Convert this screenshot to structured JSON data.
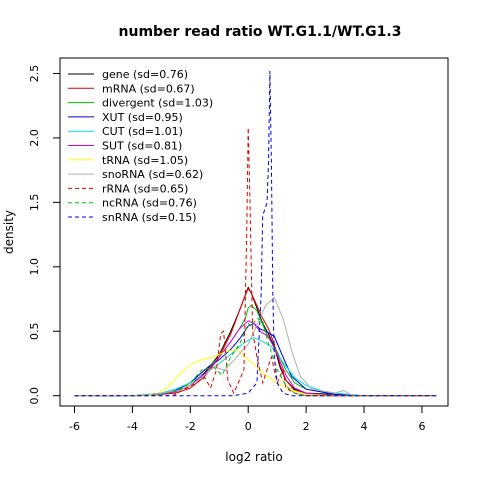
{
  "chart_data": {
    "type": "line",
    "title": "number read ratio WT.G1.1/WT.G1.3",
    "xlabel": "log2 ratio",
    "ylabel": "density",
    "xlim": [
      -6.5,
      6.9
    ],
    "ylim": [
      -0.08,
      2.62
    ],
    "x_ticks": [
      -6,
      -4,
      -2,
      0,
      2,
      4,
      6
    ],
    "y_ticks": [
      0.0,
      0.5,
      1.0,
      1.5,
      2.0,
      2.5
    ],
    "x_tick_labels": [
      "-6",
      "-4",
      "-2",
      "0",
      "2",
      "4",
      "6"
    ],
    "y_tick_labels": [
      "0.0",
      "0.5",
      "1.0",
      "1.5",
      "2.0",
      "2.5"
    ],
    "grid": false,
    "legend_position": "top-left",
    "series": [
      {
        "name": "gene (sd=0.76)",
        "color": "#000000",
        "dash": "solid",
        "points": [
          [
            -6,
            0
          ],
          [
            -4,
            0
          ],
          [
            -3,
            0.01
          ],
          [
            -2.5,
            0.03
          ],
          [
            -2,
            0.08
          ],
          [
            -1.5,
            0.18
          ],
          [
            -1,
            0.32
          ],
          [
            -0.6,
            0.5
          ],
          [
            -0.3,
            0.66
          ],
          [
            -0.1,
            0.78
          ],
          [
            0,
            0.84
          ],
          [
            0.1,
            0.8
          ],
          [
            0.3,
            0.68
          ],
          [
            0.5,
            0.56
          ],
          [
            0.7,
            0.48
          ],
          [
            0.9,
            0.38
          ],
          [
            1.1,
            0.22
          ],
          [
            1.3,
            0.12
          ],
          [
            1.6,
            0.05
          ],
          [
            2,
            0.02
          ],
          [
            3,
            0.01
          ],
          [
            4,
            0
          ],
          [
            6.5,
            0
          ]
        ]
      },
      {
        "name": "mRNA (sd=0.67)",
        "color": "#dd0000",
        "dash": "solid",
        "points": [
          [
            -6,
            0
          ],
          [
            -4,
            0
          ],
          [
            -3,
            0.01
          ],
          [
            -2.5,
            0.02
          ],
          [
            -2,
            0.06
          ],
          [
            -1.5,
            0.15
          ],
          [
            -1,
            0.3
          ],
          [
            -0.6,
            0.48
          ],
          [
            -0.3,
            0.66
          ],
          [
            -0.1,
            0.78
          ],
          [
            0,
            0.83
          ],
          [
            0.1,
            0.8
          ],
          [
            0.3,
            0.7
          ],
          [
            0.5,
            0.6
          ],
          [
            0.7,
            0.52
          ],
          [
            0.9,
            0.4
          ],
          [
            1.1,
            0.24
          ],
          [
            1.3,
            0.12
          ],
          [
            1.6,
            0.04
          ],
          [
            2,
            0.01
          ],
          [
            3,
            0
          ],
          [
            6.5,
            0
          ]
        ]
      },
      {
        "name": "divergent (sd=1.03)",
        "color": "#00bb00",
        "dash": "solid",
        "points": [
          [
            -6,
            0
          ],
          [
            -4,
            0
          ],
          [
            -3,
            0.02
          ],
          [
            -2.5,
            0.05
          ],
          [
            -2,
            0.1
          ],
          [
            -1.5,
            0.2
          ],
          [
            -1,
            0.3
          ],
          [
            -0.6,
            0.42
          ],
          [
            -0.3,
            0.52
          ],
          [
            -0.1,
            0.6
          ],
          [
            0,
            0.68
          ],
          [
            0.1,
            0.7
          ],
          [
            0.3,
            0.66
          ],
          [
            0.5,
            0.55
          ],
          [
            0.7,
            0.45
          ],
          [
            1,
            0.34
          ],
          [
            1.3,
            0.2
          ],
          [
            1.6,
            0.1
          ],
          [
            2,
            0.05
          ],
          [
            3,
            0.01
          ],
          [
            4,
            0
          ],
          [
            6.5,
            0
          ]
        ]
      },
      {
        "name": "XUT (sd=0.95)",
        "color": "#0000dd",
        "dash": "solid",
        "points": [
          [
            -6,
            0
          ],
          [
            -4,
            0
          ],
          [
            -3,
            0.01
          ],
          [
            -2.5,
            0.04
          ],
          [
            -2,
            0.1
          ],
          [
            -1.5,
            0.2
          ],
          [
            -1,
            0.28
          ],
          [
            -0.6,
            0.36
          ],
          [
            -0.3,
            0.44
          ],
          [
            0,
            0.54
          ],
          [
            0.2,
            0.56
          ],
          [
            0.4,
            0.52
          ],
          [
            0.6,
            0.5
          ],
          [
            0.9,
            0.46
          ],
          [
            1.2,
            0.3
          ],
          [
            1.5,
            0.15
          ],
          [
            2,
            0.05
          ],
          [
            3,
            0.01
          ],
          [
            4,
            0
          ],
          [
            6.5,
            0
          ]
        ]
      },
      {
        "name": "CUT (sd=1.01)",
        "color": "#00dddd",
        "dash": "solid",
        "points": [
          [
            -6,
            0
          ],
          [
            -4,
            0
          ],
          [
            -3,
            0.02
          ],
          [
            -2.5,
            0.05
          ],
          [
            -2,
            0.1
          ],
          [
            -1.5,
            0.17
          ],
          [
            -1,
            0.25
          ],
          [
            -0.5,
            0.34
          ],
          [
            -0.2,
            0.4
          ],
          [
            0,
            0.43
          ],
          [
            0.2,
            0.45
          ],
          [
            0.5,
            0.42
          ],
          [
            0.8,
            0.38
          ],
          [
            1.2,
            0.26
          ],
          [
            1.6,
            0.14
          ],
          [
            2,
            0.08
          ],
          [
            2.5,
            0.04
          ],
          [
            3,
            0.02
          ],
          [
            4,
            0
          ],
          [
            6.5,
            0
          ]
        ]
      },
      {
        "name": "SUT (sd=0.81)",
        "color": "#dd00dd",
        "dash": "solid",
        "points": [
          [
            -6,
            0
          ],
          [
            -4,
            0
          ],
          [
            -3,
            0.01
          ],
          [
            -2.5,
            0.03
          ],
          [
            -2,
            0.08
          ],
          [
            -1.5,
            0.17
          ],
          [
            -1,
            0.3
          ],
          [
            -0.6,
            0.42
          ],
          [
            -0.3,
            0.52
          ],
          [
            -0.1,
            0.56
          ],
          [
            0,
            0.58
          ],
          [
            0.2,
            0.56
          ],
          [
            0.4,
            0.5
          ],
          [
            0.7,
            0.46
          ],
          [
            1,
            0.32
          ],
          [
            1.3,
            0.16
          ],
          [
            1.6,
            0.06
          ],
          [
            2,
            0.02
          ],
          [
            3,
            0
          ],
          [
            6.5,
            0
          ]
        ]
      },
      {
        "name": "tRNA (sd=1.05)",
        "color": "#ffff00",
        "dash": "solid",
        "points": [
          [
            -6,
            0
          ],
          [
            -4,
            0
          ],
          [
            -3.2,
            0.01
          ],
          [
            -2.8,
            0.06
          ],
          [
            -2.4,
            0.16
          ],
          [
            -2,
            0.24
          ],
          [
            -1.6,
            0.28
          ],
          [
            -1.2,
            0.3
          ],
          [
            -0.8,
            0.34
          ],
          [
            -0.4,
            0.36
          ],
          [
            -0.2,
            0.32
          ],
          [
            0,
            0.28
          ],
          [
            0.3,
            0.22
          ],
          [
            0.6,
            0.16
          ],
          [
            1,
            0.1
          ],
          [
            1.4,
            0.05
          ],
          [
            2,
            0.01
          ],
          [
            3,
            0
          ],
          [
            6.5,
            0
          ]
        ]
      },
      {
        "name": "snoRNA (sd=0.62)",
        "color": "#b0b0b0",
        "dash": "solid",
        "points": [
          [
            -6,
            0
          ],
          [
            -4,
            0
          ],
          [
            -3,
            0.02
          ],
          [
            -2.4,
            0.04
          ],
          [
            -2,
            0.08
          ],
          [
            -1.6,
            0.14
          ],
          [
            -1.2,
            0.22
          ],
          [
            -0.8,
            0.2
          ],
          [
            -0.4,
            0.3
          ],
          [
            0,
            0.4
          ],
          [
            0.3,
            0.55
          ],
          [
            0.6,
            0.7
          ],
          [
            0.9,
            0.76
          ],
          [
            1.2,
            0.6
          ],
          [
            1.5,
            0.35
          ],
          [
            1.8,
            0.15
          ],
          [
            2.2,
            0.05
          ],
          [
            3,
            0.02
          ],
          [
            3.3,
            0.04
          ],
          [
            3.6,
            0
          ],
          [
            4,
            0
          ],
          [
            6.5,
            0
          ]
        ]
      },
      {
        "name": "rRNA (sd=0.65)",
        "color": "#dd0000",
        "dash": "dashed",
        "points": [
          [
            -6,
            0
          ],
          [
            -4,
            0
          ],
          [
            -2.6,
            0
          ],
          [
            -2.2,
            0.05
          ],
          [
            -1.8,
            0.1
          ],
          [
            -1.5,
            0.14
          ],
          [
            -1.3,
            0.06
          ],
          [
            -1.1,
            0.2
          ],
          [
            -0.95,
            0.48
          ],
          [
            -0.85,
            0.5
          ],
          [
            -0.7,
            0.12
          ],
          [
            -0.5,
            0.02
          ],
          [
            -0.3,
            0.12
          ],
          [
            -0.15,
            0.2
          ],
          [
            -0.05,
            1.3
          ],
          [
            0,
            2.08
          ],
          [
            0.05,
            1.6
          ],
          [
            0.15,
            0.5
          ],
          [
            0.3,
            0.3
          ],
          [
            0.5,
            0.1
          ],
          [
            0.8,
            0.3
          ],
          [
            1,
            0.1
          ],
          [
            1.2,
            0.2
          ],
          [
            1.3,
            0.06
          ],
          [
            1.6,
            0.02
          ],
          [
            2,
            0
          ],
          [
            6.5,
            0
          ]
        ]
      },
      {
        "name": "ncRNA (sd=0.76)",
        "color": "#00bb00",
        "dash": "dashed",
        "points": [
          [
            -6,
            0
          ],
          [
            -4,
            0
          ],
          [
            -3,
            0.01
          ],
          [
            -2.4,
            0.04
          ],
          [
            -2,
            0.1
          ],
          [
            -1.6,
            0.2
          ],
          [
            -1.2,
            0.22
          ],
          [
            -0.9,
            0.16
          ],
          [
            -0.6,
            0.3
          ],
          [
            -0.3,
            0.4
          ],
          [
            -0.1,
            0.5
          ],
          [
            0,
            0.56
          ],
          [
            0.1,
            0.54
          ],
          [
            0.3,
            0.6
          ],
          [
            0.5,
            0.58
          ],
          [
            0.7,
            0.4
          ],
          [
            1,
            0.2
          ],
          [
            1.3,
            0.08
          ],
          [
            1.6,
            0.02
          ],
          [
            2,
            0
          ],
          [
            6.5,
            0
          ]
        ]
      },
      {
        "name": "snRNA (sd=0.15)",
        "color": "#0000dd",
        "dash": "dashed",
        "points": [
          [
            -6,
            0
          ],
          [
            -4,
            0
          ],
          [
            -1,
            0
          ],
          [
            -0.5,
            0
          ],
          [
            0,
            0.02
          ],
          [
            0.3,
            0.1
          ],
          [
            0.45,
            0.8
          ],
          [
            0.5,
            1.4
          ],
          [
            0.6,
            1.46
          ],
          [
            0.65,
            1.5
          ],
          [
            0.7,
            1.8
          ],
          [
            0.75,
            2.52
          ],
          [
            0.8,
            1.8
          ],
          [
            0.85,
            0.8
          ],
          [
            0.9,
            0.3
          ],
          [
            1,
            0.1
          ],
          [
            1.2,
            0.02
          ],
          [
            1.5,
            0
          ],
          [
            6.5,
            0
          ]
        ]
      }
    ]
  }
}
